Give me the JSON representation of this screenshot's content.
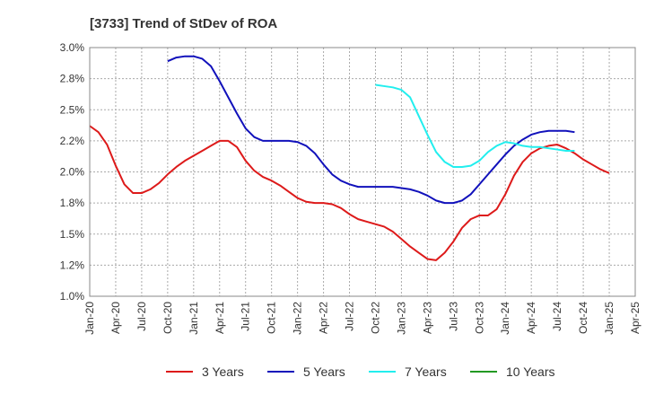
{
  "chart_data": {
    "type": "line",
    "title": "[3733]  Trend of StDev of ROA",
    "xlabel": "",
    "ylabel": "",
    "x_ticks": [
      "Jan-20",
      "Apr-20",
      "Jul-20",
      "Oct-20",
      "Jan-21",
      "Apr-21",
      "Jul-21",
      "Oct-21",
      "Jan-22",
      "Apr-22",
      "Jul-22",
      "Oct-22",
      "Jan-23",
      "Apr-23",
      "Jul-23",
      "Oct-23",
      "Jan-24",
      "Apr-24",
      "Jul-24",
      "Oct-24",
      "Jan-25",
      "Apr-25"
    ],
    "y_ticks": [
      "1.0%",
      "1.2%",
      "1.5%",
      "1.8%",
      "2.0%",
      "2.2%",
      "2.5%",
      "2.8%",
      "3.0%"
    ],
    "ylim": [
      1.0,
      3.0
    ],
    "grid": true,
    "legend_position": "bottom",
    "series": [
      {
        "name": "3 Years",
        "color": "#dd1a1a",
        "start_index": 0,
        "values": [
          2.37,
          2.32,
          2.22,
          2.05,
          1.9,
          1.83,
          1.83,
          1.86,
          1.91,
          1.98,
          2.04,
          2.09,
          2.13,
          2.17,
          2.21,
          2.25,
          2.25,
          2.2,
          2.09,
          2.01,
          1.96,
          1.93,
          1.89,
          1.84,
          1.79,
          1.76,
          1.75,
          1.75,
          1.74,
          1.71,
          1.66,
          1.62,
          1.6,
          1.58,
          1.56,
          1.52,
          1.46,
          1.4,
          1.35,
          1.3,
          1.29,
          1.35,
          1.44,
          1.55,
          1.62,
          1.65,
          1.65,
          1.7,
          1.82,
          1.97,
          2.08,
          2.15,
          2.19,
          2.21,
          2.22,
          2.19,
          2.15,
          2.1,
          2.06,
          2.02,
          1.99
        ]
      },
      {
        "name": "5 Years",
        "color": "#1111bb",
        "start_index": 9,
        "values": [
          2.89,
          2.92,
          2.93,
          2.93,
          2.91,
          2.85,
          2.73,
          2.6,
          2.47,
          2.35,
          2.28,
          2.25,
          2.25,
          2.25,
          2.25,
          2.24,
          2.21,
          2.15,
          2.06,
          1.98,
          1.93,
          1.9,
          1.88,
          1.88,
          1.88,
          1.88,
          1.88,
          1.87,
          1.86,
          1.84,
          1.81,
          1.77,
          1.75,
          1.75,
          1.77,
          1.82,
          1.9,
          1.98,
          2.06,
          2.14,
          2.21,
          2.26,
          2.3,
          2.32,
          2.33,
          2.33,
          2.33,
          2.32
        ]
      },
      {
        "name": "7 Years",
        "color": "#22eeee",
        "start_index": 33,
        "values": [
          2.7,
          2.69,
          2.68,
          2.66,
          2.6,
          2.45,
          2.3,
          2.16,
          2.08,
          2.04,
          2.04,
          2.05,
          2.09,
          2.16,
          2.21,
          2.24,
          2.23,
          2.21,
          2.2,
          2.2,
          2.19,
          2.18,
          2.17,
          2.17
        ]
      },
      {
        "name": "10 Years",
        "color": "#229922",
        "start_index": 0,
        "values": []
      }
    ]
  }
}
